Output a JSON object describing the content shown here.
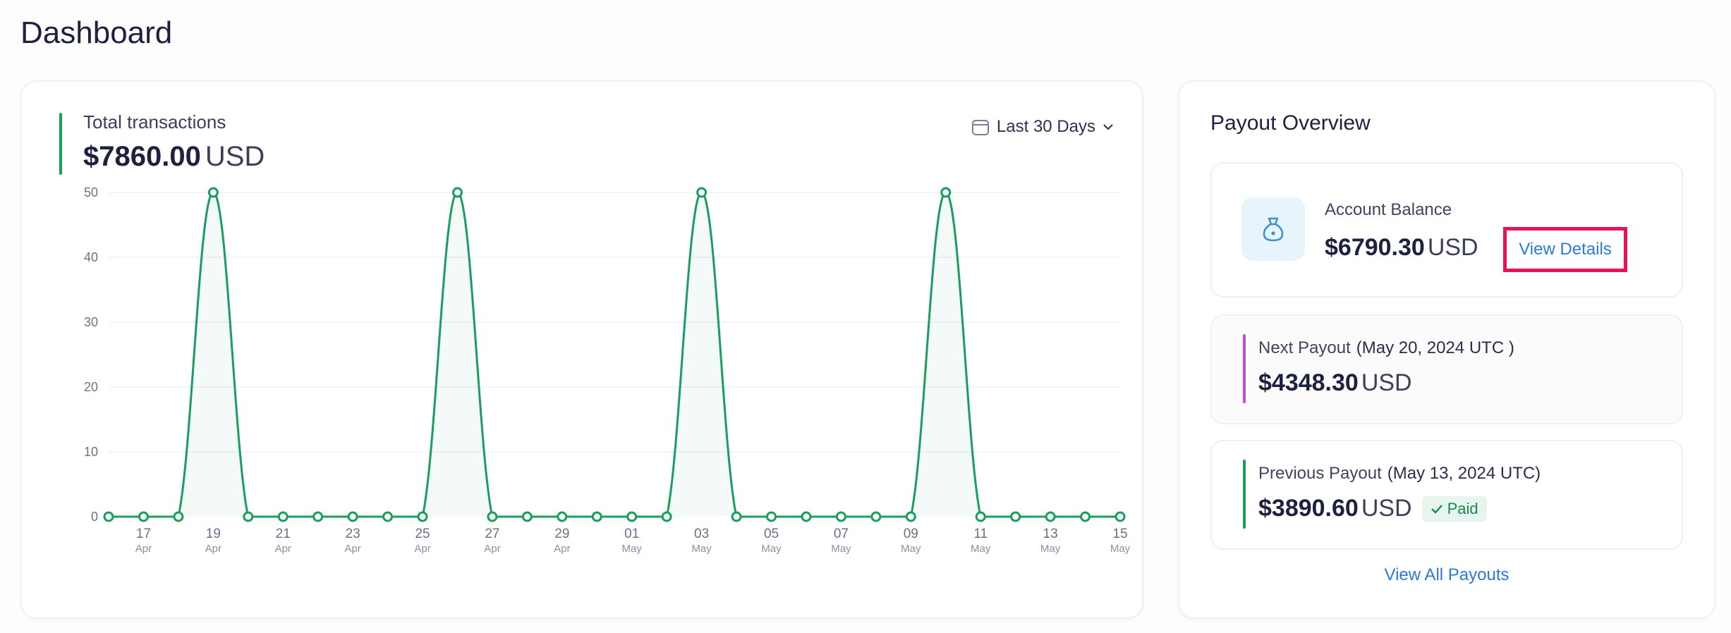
{
  "page": {
    "title": "Dashboard"
  },
  "transactions": {
    "label": "Total transactions",
    "amount": "$7860.00",
    "currency": "USD",
    "range_label": "Last 30 Days",
    "accent_color": "#1a9e5e"
  },
  "chart_data": {
    "type": "area",
    "title": "",
    "xlabel": "",
    "ylabel": "",
    "ylim": [
      0,
      50
    ],
    "y_ticks": [
      0,
      10,
      20,
      30,
      40,
      50
    ],
    "grid": true,
    "line_color": "#1a9e5e",
    "x": [
      "Apr 16",
      "Apr 17",
      "Apr 18",
      "Apr 19",
      "Apr 20",
      "Apr 21",
      "Apr 22",
      "Apr 23",
      "Apr 24",
      "Apr 25",
      "Apr 26",
      "Apr 27",
      "Apr 28",
      "Apr 29",
      "Apr 30",
      "May 01",
      "May 02",
      "May 03",
      "May 04",
      "May 05",
      "May 06",
      "May 07",
      "May 08",
      "May 09",
      "May 10",
      "May 11",
      "May 12",
      "May 13",
      "May 14",
      "May 15"
    ],
    "series": [
      {
        "values": [
          0,
          0,
          0,
          50,
          0,
          0,
          0,
          0,
          0,
          0,
          50,
          0,
          0,
          0,
          0,
          0,
          0,
          50,
          0,
          0,
          0,
          0,
          0,
          0,
          50,
          0,
          0,
          0,
          0,
          0
        ]
      }
    ],
    "tick_labels": [
      {
        "day": "17",
        "month": "Apr"
      },
      {
        "day": "19",
        "month": "Apr"
      },
      {
        "day": "21",
        "month": "Apr"
      },
      {
        "day": "23",
        "month": "Apr"
      },
      {
        "day": "25",
        "month": "Apr"
      },
      {
        "day": "27",
        "month": "Apr"
      },
      {
        "day": "29",
        "month": "Apr"
      },
      {
        "day": "01",
        "month": "May"
      },
      {
        "day": "03",
        "month": "May"
      },
      {
        "day": "05",
        "month": "May"
      },
      {
        "day": "07",
        "month": "May"
      },
      {
        "day": "09",
        "month": "May"
      },
      {
        "day": "11",
        "month": "May"
      },
      {
        "day": "13",
        "month": "May"
      },
      {
        "day": "15",
        "month": "May"
      }
    ]
  },
  "payout": {
    "title": "Payout Overview",
    "balance": {
      "label": "Account Balance",
      "amount": "$6790.30",
      "currency": "USD",
      "link": "View Details",
      "highlight_color": "#ea1256"
    },
    "next": {
      "label": "Next Payout",
      "date": "(May 20, 2024  UTC )",
      "amount": "$4348.30",
      "currency": "USD",
      "accent_color": "#c04fd8"
    },
    "previous": {
      "label": "Previous Payout",
      "date": "(May 13, 2024 UTC)",
      "amount": "$3890.60",
      "currency": "USD",
      "status": "Paid",
      "accent_color": "#1a9e5e"
    },
    "view_all": "View All Payouts"
  }
}
